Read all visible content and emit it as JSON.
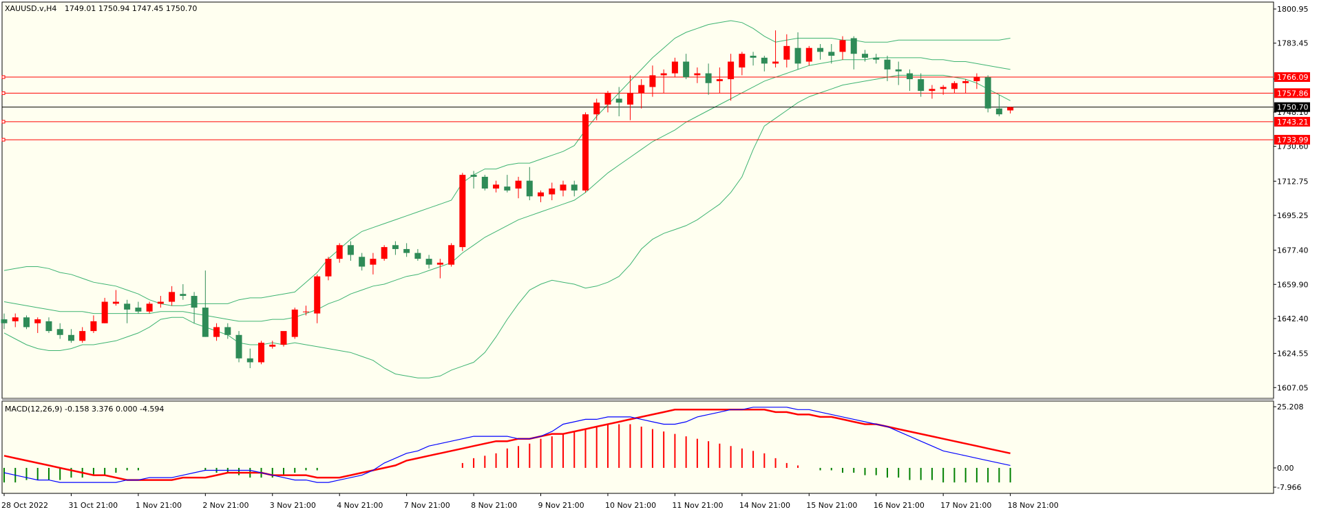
{
  "header": {
    "symbol": "XAUUSD.v,H4",
    "ohlc": "1749.01 1750.94 1747.45 1750.70"
  },
  "macd_header": {
    "label": "MACD(12,26,9) -0.158 3.376 0.000 -4.594"
  },
  "colors": {
    "background": "#fffff0",
    "up_candle": "#ff0000",
    "down_candle": "#2e8b57",
    "bollinger": "#3cb371",
    "hline": "#ff0000",
    "price_line": "#000000",
    "macd_line": "#0000ff",
    "signal_line": "#ff0000",
    "hist_pos": "#ff0000",
    "hist_neg": "#008000"
  },
  "chart_data": {
    "type": "candlestick",
    "price_axis": {
      "ticks": [
        "1800.95",
        "1783.45",
        "1765.10",
        "1748.10",
        "1730.60",
        "1712.75",
        "1695.25",
        "1677.40",
        "1659.90",
        "1642.40",
        "1624.55",
        "1607.05"
      ],
      "ylim": [
        1601.5,
        1804.5
      ]
    },
    "time_axis": {
      "labels": [
        "28 Oct 2022",
        "31 Oct 21:00",
        "1 Nov 21:00",
        "2 Nov 21:00",
        "3 Nov 21:00",
        "4 Nov 21:00",
        "7 Nov 21:00",
        "8 Nov 21:00",
        "9 Nov 21:00",
        "10 Nov 21:00",
        "11 Nov 21:00",
        "14 Nov 21:00",
        "15 Nov 21:00",
        "16 Nov 21:00",
        "17 Nov 21:00",
        "18 Nov 21:00"
      ],
      "label_bar_index": [
        0,
        6,
        12,
        18,
        24,
        30,
        36,
        42,
        48,
        54,
        60,
        66,
        72,
        78,
        84,
        90
      ]
    },
    "hlines": [
      {
        "label": "1766.09",
        "value": 1766.09
      },
      {
        "label": "1757.86",
        "value": 1757.86
      },
      {
        "label": "1743.21",
        "value": 1743.21
      },
      {
        "label": "1733.99",
        "value": 1733.99
      }
    ],
    "current_price": {
      "label": "1750.70",
      "value": 1750.7
    },
    "candles": [
      [
        1642,
        1645,
        1637,
        1640
      ],
      [
        1641,
        1645,
        1638,
        1643
      ],
      [
        1643,
        1644,
        1637,
        1638
      ],
      [
        1640,
        1643,
        1635,
        1642
      ],
      [
        1641,
        1643,
        1635,
        1636
      ],
      [
        1637,
        1640,
        1632,
        1634
      ],
      [
        1634,
        1637,
        1630,
        1631
      ],
      [
        1631,
        1638,
        1630,
        1636
      ],
      [
        1636,
        1644,
        1635,
        1641
      ],
      [
        1640,
        1653,
        1640,
        1651
      ],
      [
        1650,
        1657,
        1649,
        1651
      ],
      [
        1650,
        1652,
        1640,
        1647
      ],
      [
        1648,
        1651,
        1645,
        1646
      ],
      [
        1646,
        1651,
        1645,
        1650
      ],
      [
        1650,
        1654,
        1648,
        1651
      ],
      [
        1651,
        1659,
        1649,
        1656
      ],
      [
        1655,
        1660,
        1652,
        1654
      ],
      [
        1654,
        1656,
        1640,
        1648
      ],
      [
        1648,
        1667,
        1633,
        1633
      ],
      [
        1633,
        1640,
        1631,
        1638
      ],
      [
        1638,
        1640,
        1632,
        1634
      ],
      [
        1634,
        1636,
        1620,
        1622
      ],
      [
        1622,
        1627,
        1617,
        1620
      ],
      [
        1620,
        1631,
        1619,
        1630
      ],
      [
        1628,
        1631,
        1627,
        1629
      ],
      [
        1629,
        1635,
        1628,
        1636
      ],
      [
        1633,
        1648,
        1632,
        1647
      ],
      [
        1646,
        1649,
        1644,
        1646
      ],
      [
        1645,
        1665,
        1640,
        1664
      ],
      [
        1664,
        1674,
        1662,
        1673
      ],
      [
        1673,
        1681,
        1671,
        1680
      ],
      [
        1680,
        1682,
        1672,
        1675
      ],
      [
        1674,
        1676,
        1667,
        1669
      ],
      [
        1670,
        1676,
        1665,
        1673
      ],
      [
        1673,
        1680,
        1672,
        1679
      ],
      [
        1680,
        1682,
        1675,
        1678
      ],
      [
        1678,
        1681,
        1674,
        1676
      ],
      [
        1676,
        1678,
        1672,
        1673
      ],
      [
        1673,
        1675,
        1668,
        1670
      ],
      [
        1670,
        1673,
        1663,
        1671
      ],
      [
        1670,
        1681,
        1669,
        1680
      ],
      [
        1679,
        1717,
        1677,
        1716
      ],
      [
        1716,
        1718,
        1709,
        1715
      ],
      [
        1715,
        1716,
        1708,
        1709
      ],
      [
        1709,
        1713,
        1707,
        1711
      ],
      [
        1710,
        1716,
        1707,
        1708
      ],
      [
        1709,
        1715,
        1704,
        1713
      ],
      [
        1713,
        1720,
        1703,
        1705
      ],
      [
        1705,
        1708,
        1702,
        1707
      ],
      [
        1706,
        1712,
        1703,
        1709
      ],
      [
        1708,
        1713,
        1705,
        1711
      ],
      [
        1711,
        1713,
        1705,
        1708
      ],
      [
        1708,
        1748,
        1707,
        1747
      ],
      [
        1747,
        1755,
        1744,
        1753
      ],
      [
        1752,
        1759,
        1748,
        1758
      ],
      [
        1755,
        1761,
        1746,
        1753
      ],
      [
        1752,
        1767,
        1744,
        1758
      ],
      [
        1758,
        1765,
        1750,
        1762
      ],
      [
        1761,
        1772,
        1756,
        1767
      ],
      [
        1767,
        1770,
        1758,
        1768
      ],
      [
        1768,
        1776,
        1766,
        1774
      ],
      [
        1774,
        1778,
        1765,
        1766
      ],
      [
        1767,
        1771,
        1763,
        1768
      ],
      [
        1768,
        1773,
        1757,
        1763
      ],
      [
        1764,
        1771,
        1758,
        1765
      ],
      [
        1765,
        1778,
        1754,
        1774
      ],
      [
        1771,
        1779,
        1767,
        1778
      ],
      [
        1777,
        1779,
        1772,
        1776
      ],
      [
        1776,
        1777,
        1769,
        1773
      ],
      [
        1773,
        1790,
        1771,
        1774
      ],
      [
        1775,
        1788,
        1771,
        1782
      ],
      [
        1781,
        1789,
        1770,
        1773
      ],
      [
        1774,
        1782,
        1772,
        1781
      ],
      [
        1781,
        1783,
        1775,
        1779
      ],
      [
        1779,
        1783,
        1773,
        1777
      ],
      [
        1779,
        1787,
        1775,
        1785
      ],
      [
        1786,
        1787,
        1770,
        1778
      ],
      [
        1778,
        1780,
        1774,
        1776
      ],
      [
        1776,
        1778,
        1773,
        1775
      ],
      [
        1775,
        1777,
        1764,
        1770
      ],
      [
        1770,
        1774,
        1762,
        1769
      ],
      [
        1768,
        1770,
        1759,
        1765
      ],
      [
        1765,
        1768,
        1756,
        1759
      ],
      [
        1759,
        1762,
        1755,
        1760
      ],
      [
        1760,
        1762,
        1757,
        1761
      ],
      [
        1760,
        1764,
        1758,
        1763
      ],
      [
        1763,
        1765,
        1758,
        1764
      ],
      [
        1764,
        1768,
        1760,
        1766
      ],
      [
        1766,
        1767,
        1748,
        1750
      ],
      [
        1750,
        1757,
        1746,
        1747
      ],
      [
        1749.01,
        1750.94,
        1747.45,
        1750.7
      ]
    ],
    "bollinger": {
      "mid": [
        1651,
        1650,
        1649,
        1648,
        1647,
        1646,
        1646,
        1646,
        1645,
        1645,
        1645,
        1645,
        1645,
        1645,
        1646,
        1646,
        1646,
        1645,
        1644,
        1643,
        1642,
        1641,
        1641,
        1641,
        1642,
        1642,
        1643,
        1645,
        1647,
        1650,
        1652,
        1655,
        1657,
        1659,
        1660,
        1662,
        1664,
        1665,
        1667,
        1669,
        1671,
        1676,
        1680,
        1684,
        1687,
        1690,
        1693,
        1695,
        1697,
        1699,
        1701,
        1703,
        1707,
        1712,
        1717,
        1721,
        1725,
        1729,
        1733,
        1736,
        1739,
        1743,
        1746,
        1749,
        1752,
        1755,
        1758,
        1761,
        1764,
        1766,
        1768,
        1770,
        1772,
        1773,
        1774,
        1775,
        1775,
        1775,
        1776,
        1776,
        1776,
        1776,
        1776,
        1775,
        1775,
        1774,
        1774,
        1773,
        1772,
        1771,
        1770
      ],
      "upper": [
        1667,
        1668,
        1669,
        1669,
        1668,
        1666,
        1665,
        1663,
        1661,
        1660,
        1659,
        1657,
        1655,
        1652,
        1650,
        1649,
        1649,
        1650,
        1650,
        1650,
        1650,
        1652,
        1653,
        1653,
        1654,
        1655,
        1656,
        1661,
        1666,
        1673,
        1678,
        1683,
        1687,
        1689,
        1691,
        1693,
        1695,
        1697,
        1699,
        1701,
        1703,
        1712,
        1716,
        1719,
        1719,
        1721,
        1722,
        1722,
        1724,
        1726,
        1728,
        1731,
        1739,
        1746,
        1752,
        1758,
        1764,
        1770,
        1776,
        1781,
        1786,
        1789,
        1791,
        1793,
        1794,
        1795,
        1794,
        1791,
        1787,
        1784,
        1785,
        1786,
        1786,
        1786,
        1786,
        1785,
        1785,
        1784,
        1784,
        1784,
        1785,
        1785,
        1785,
        1785,
        1785,
        1785,
        1785,
        1785,
        1785,
        1785,
        1786
      ],
      "lower": [
        1635,
        1632,
        1629,
        1627,
        1626,
        1626,
        1627,
        1629,
        1629,
        1630,
        1631,
        1633,
        1635,
        1638,
        1642,
        1643,
        1643,
        1640,
        1638,
        1636,
        1634,
        1630,
        1629,
        1629,
        1630,
        1629,
        1630,
        1629,
        1628,
        1627,
        1626,
        1625,
        1623,
        1621,
        1617,
        1614,
        1613,
        1612,
        1612,
        1613,
        1616,
        1618,
        1620,
        1625,
        1633,
        1642,
        1650,
        1657,
        1660,
        1662,
        1661,
        1660,
        1658,
        1659,
        1661,
        1664,
        1670,
        1678,
        1683,
        1686,
        1688,
        1690,
        1693,
        1697,
        1701,
        1707,
        1715,
        1729,
        1741,
        1745,
        1749,
        1753,
        1756,
        1758,
        1760,
        1762,
        1763,
        1764,
        1765,
        1766,
        1767,
        1767,
        1767,
        1767,
        1767,
        1766,
        1765,
        1763,
        1760,
        1757,
        1754
      ]
    },
    "macd": {
      "axis_ticks": [
        "25.208",
        "0.00",
        "-7.966"
      ],
      "ylim": [
        -10.5,
        27.5
      ],
      "histogram": [
        -6,
        -6,
        -5,
        -5,
        -5,
        -5,
        -4,
        -4,
        -3,
        -3,
        -2,
        -1,
        -1,
        0,
        0,
        0,
        0,
        0,
        -1,
        -2,
        -2,
        -3,
        -4,
        -4,
        -4,
        -3,
        -2,
        -1,
        -1,
        0,
        0,
        0,
        0,
        0,
        0,
        0,
        0,
        0,
        0,
        0,
        0,
        2,
        4,
        5,
        6,
        8,
        9,
        10,
        12,
        13,
        14,
        15,
        16,
        17,
        18,
        18,
        18,
        17,
        16,
        15,
        14,
        13,
        12,
        11,
        10,
        9,
        8,
        7,
        6,
        4,
        2,
        1,
        0,
        -1,
        -1,
        -2,
        -2,
        -3,
        -3,
        -4,
        -4,
        -5,
        -5,
        -5,
        -6,
        -6,
        -6,
        -6,
        -6,
        -6,
        -6
      ],
      "macd_line": [
        -2,
        -3,
        -4,
        -5,
        -5,
        -6,
        -6,
        -6,
        -6,
        -6,
        -6,
        -5,
        -5,
        -4,
        -4,
        -4,
        -3,
        -2,
        -1,
        -1,
        -1,
        -1,
        -1,
        -2,
        -3,
        -4,
        -5,
        -5,
        -6,
        -6,
        -5,
        -4,
        -3,
        -1,
        2,
        4,
        6,
        7,
        9,
        10,
        11,
        12,
        13,
        13,
        13,
        13,
        12,
        12,
        13,
        15,
        18,
        19,
        20,
        20,
        21,
        21,
        21,
        20,
        19,
        18,
        18,
        19,
        21,
        22,
        23,
        24,
        24,
        25,
        25,
        25,
        25,
        24,
        24,
        23,
        22,
        21,
        20,
        19,
        18,
        17,
        15,
        13,
        11,
        9,
        7,
        6,
        5,
        4,
        3,
        2,
        1
      ],
      "signal_line": [
        5,
        4,
        3,
        2,
        1,
        0,
        -1,
        -2,
        -3,
        -3,
        -4,
        -5,
        -5,
        -5,
        -5,
        -5,
        -4,
        -4,
        -4,
        -3,
        -2,
        -2,
        -2,
        -2,
        -3,
        -3,
        -3,
        -3,
        -4,
        -4,
        -4,
        -3,
        -2,
        -1,
        0,
        1,
        3,
        4,
        5,
        6,
        7,
        8,
        9,
        10,
        11,
        11,
        12,
        12,
        13,
        14,
        14,
        15,
        16,
        17,
        18,
        19,
        20,
        21,
        22,
        23,
        24,
        24,
        24,
        24,
        24,
        24,
        24,
        24,
        24,
        23,
        23,
        22,
        22,
        21,
        21,
        20,
        19,
        18,
        18,
        17,
        16,
        15,
        14,
        13,
        12,
        11,
        10,
        9,
        8,
        7,
        6
      ]
    }
  }
}
